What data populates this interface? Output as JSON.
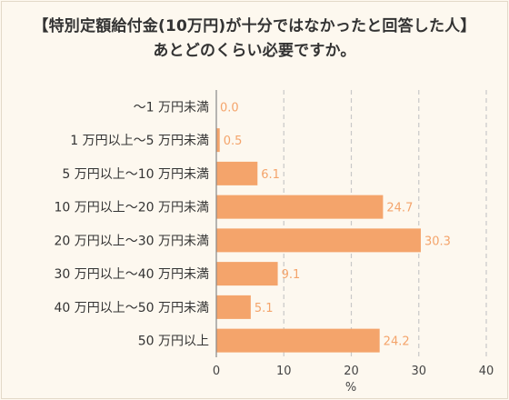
{
  "chart_data": {
    "type": "bar",
    "orientation": "horizontal",
    "title": "【特別定額給付金(10万円)が十分ではなかったと回答した人】",
    "subtitle": "あとどのくらい必要ですか。",
    "categories": [
      "～1 万円未満",
      "1 万円以上～5 万円未満",
      "5 万円以上～10 万円未満",
      "10 万円以上～20 万円未満",
      "20 万円以上～30 万円未満",
      "30 万円以上～40 万円未満",
      "40 万円以上～50 万円未満",
      "50 万円以上"
    ],
    "values": [
      0.0,
      0.5,
      6.1,
      24.7,
      30.3,
      9.1,
      5.1,
      24.2
    ],
    "value_labels": [
      "0.0",
      "0.5",
      "6.1",
      "24.7",
      "30.3",
      "9.1",
      "5.1",
      "24.2"
    ],
    "xlim": [
      0,
      40
    ],
    "xticks": [
      0,
      10,
      20,
      30,
      40
    ],
    "xlabel": "%",
    "grid": "vertical-dashed",
    "colors": {
      "bar": "#f4a46b",
      "label": "#f4a46b",
      "grid": "#c8c8c8"
    }
  }
}
